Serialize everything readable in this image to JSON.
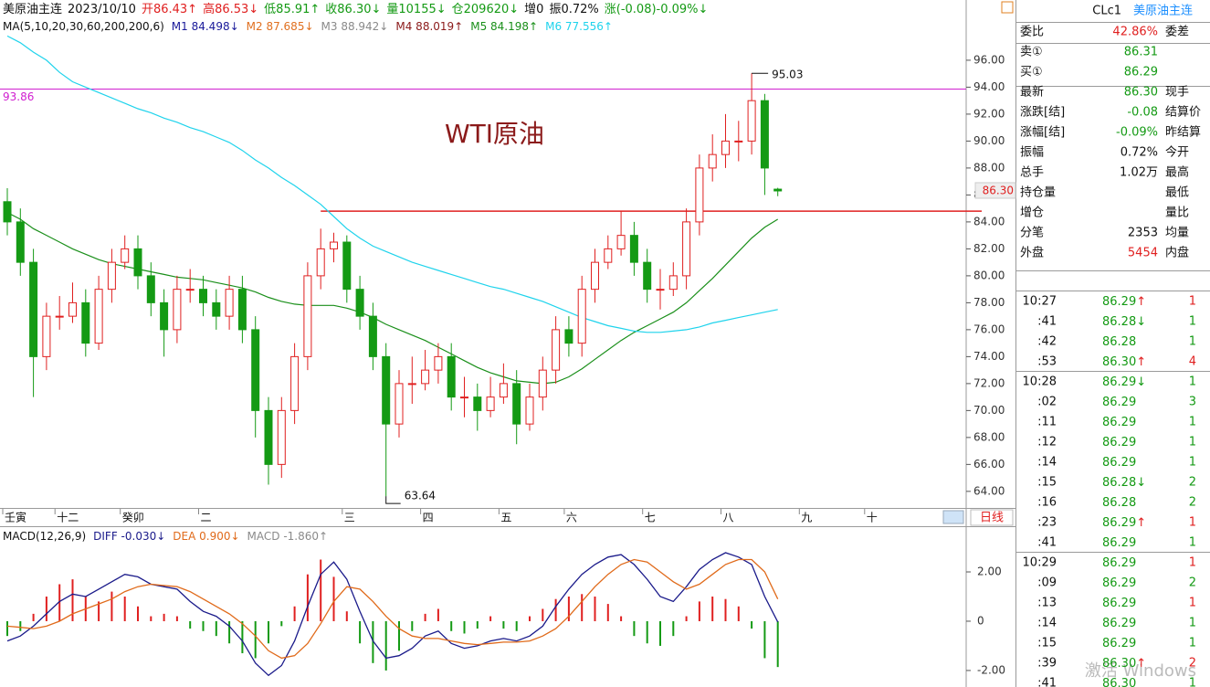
{
  "header": {
    "segments": [
      {
        "text": "美原油主连",
        "color": "#111"
      },
      {
        "text": "2023/10/10",
        "color": "#111"
      },
      {
        "text": "开86.43↑",
        "color": "#e02020"
      },
      {
        "text": "高86.53↓",
        "color": "#e02020"
      },
      {
        "text": "低85.91↑",
        "color": "#149a14"
      },
      {
        "text": "收86.30↓",
        "color": "#149a14"
      },
      {
        "text": "量10155↓",
        "color": "#149a14"
      },
      {
        "text": "仓209620↓",
        "color": "#149a14"
      },
      {
        "text": "增0",
        "color": "#111"
      },
      {
        "text": "振0.72%",
        "color": "#111"
      },
      {
        "text": "涨(-0.08)-0.09%↓",
        "color": "#149a14"
      }
    ]
  },
  "chart_data": [
    {
      "type": "candlestick",
      "annotation": "WTI原油",
      "ma_label": "MA(5,10,20,30,60,200,200,6)",
      "up_color": "#e02020",
      "down_color": "#149a14",
      "last_label": "86.30",
      "period": "日线",
      "categories": [
        "壬寅",
        null,
        null,
        null,
        "十二",
        null,
        null,
        null,
        null,
        "癸卯",
        null,
        null,
        null,
        null,
        null,
        "二",
        null,
        null,
        null,
        null,
        null,
        null,
        null,
        null,
        null,
        null,
        "三",
        null,
        null,
        null,
        null,
        null,
        "四",
        null,
        null,
        null,
        null,
        null,
        "五",
        null,
        null,
        null,
        null,
        "六",
        null,
        null,
        null,
        null,
        null,
        "七",
        null,
        null,
        null,
        null,
        null,
        "八",
        null,
        null,
        null,
        null,
        null,
        "九",
        null,
        null,
        null,
        null,
        "十"
      ],
      "open": [
        85.5,
        84,
        81,
        74,
        77,
        77,
        78,
        75,
        79,
        81,
        82,
        80,
        78,
        76,
        79,
        79,
        78,
        77,
        79,
        76,
        70,
        66,
        70,
        74,
        80,
        82,
        82.5,
        79,
        77,
        74,
        69,
        72,
        72,
        73,
        74,
        71,
        71,
        70,
        71,
        72,
        69,
        71,
        73,
        76,
        75,
        79,
        81,
        82,
        83,
        81,
        79,
        79,
        80,
        84,
        88,
        89,
        90,
        90,
        93,
        86.43,
        null,
        null,
        null,
        null,
        null,
        null,
        null
      ],
      "high": [
        86.5,
        85,
        82,
        78,
        78.5,
        79.5,
        79,
        80,
        82,
        83,
        83,
        81,
        79,
        80,
        80.5,
        80,
        79,
        80,
        80,
        77,
        71,
        71,
        75,
        81,
        83.5,
        83.2,
        83,
        80,
        78,
        75,
        73,
        74,
        74.5,
        75,
        75,
        72.5,
        72,
        72.5,
        73.5,
        73,
        72,
        74,
        77,
        77,
        80,
        82,
        83,
        84.8,
        84,
        82,
        80.5,
        81,
        85,
        89,
        90.5,
        92,
        91.5,
        95.03,
        93.5,
        86.53,
        null,
        null,
        null,
        null,
        null,
        null,
        null
      ],
      "low": [
        83,
        80,
        71,
        73,
        76,
        76.5,
        74,
        74.5,
        78,
        80.5,
        79,
        77,
        74,
        75,
        78,
        77,
        76,
        76,
        75,
        68,
        64.5,
        65,
        69,
        73,
        79,
        81,
        78,
        76,
        73,
        63.64,
        68,
        70.5,
        71.5,
        72,
        70,
        69.5,
        68.5,
        69.5,
        70.5,
        67.5,
        68.5,
        70,
        72,
        74,
        74,
        78,
        80.5,
        81.5,
        80,
        78,
        77.5,
        78.5,
        79,
        83,
        87,
        88,
        88.5,
        89,
        86,
        85.91,
        null,
        null,
        null,
        null,
        null,
        null,
        null
      ],
      "close": [
        84,
        81,
        74,
        77,
        77,
        78,
        75,
        79,
        81,
        82,
        80,
        78,
        76,
        79,
        79,
        78,
        77,
        79,
        76,
        70,
        66,
        70,
        74,
        80,
        82,
        82.5,
        79,
        77,
        74,
        69,
        72,
        72,
        73,
        74,
        71,
        71,
        70,
        71,
        72,
        69,
        71,
        73,
        76,
        75,
        79,
        81,
        82,
        83,
        81,
        79,
        79,
        80,
        84,
        88,
        89,
        90,
        90,
        93,
        88,
        86.3,
        null,
        null,
        null,
        null,
        null,
        null,
        null
      ],
      "series": [
        {
          "name": "M1 84.498↓",
          "color": "#1a1a9a"
        },
        {
          "name": "M2 87.685↓",
          "color": "#e07020"
        },
        {
          "name": "M3 88.942↓",
          "color": "#8a8a8a"
        },
        {
          "name": "M4 88.019↑",
          "color": "#8b1a1a"
        },
        {
          "name": "M5 84.198↑",
          "color": "#1a8f1a",
          "values": [
            84.7,
            84.2,
            83.5,
            83,
            82.5,
            82,
            81.6,
            81.2,
            80.9,
            80.7,
            80.5,
            80.3,
            80.1,
            79.9,
            79.8,
            79.7,
            79.5,
            79.3,
            79.1,
            78.8,
            78.4,
            78.1,
            77.9,
            77.8,
            77.8,
            77.8,
            77.6,
            77.3,
            76.9,
            76.4,
            76,
            75.6,
            75.2,
            74.7,
            74.2,
            73.7,
            73.2,
            72.8,
            72.5,
            72.2,
            72.1,
            72,
            72.1,
            72.5,
            73.1,
            73.8,
            74.5,
            75.2,
            75.8,
            76.3,
            76.8,
            77.3,
            78,
            78.9,
            79.8,
            80.8,
            81.8,
            82.8,
            83.6,
            84.2,
            null,
            null,
            null,
            null,
            null,
            null,
            null
          ]
        },
        {
          "name": "M6 77.556↑",
          "color": "#1fd3ec",
          "values": [
            97.8,
            97.3,
            96.6,
            96,
            95.1,
            94.4,
            94,
            93.6,
            93.2,
            92.8,
            92.4,
            92.1,
            91.7,
            91.4,
            91,
            90.7,
            90.3,
            89.9,
            89.3,
            88.6,
            88,
            87.3,
            86.7,
            86,
            85.3,
            84.4,
            83.5,
            82.8,
            82.2,
            81.8,
            81.4,
            81,
            80.7,
            80.4,
            80.1,
            79.8,
            79.5,
            79.2,
            79,
            78.7,
            78.4,
            78.1,
            77.7,
            77.3,
            76.9,
            76.6,
            76.3,
            76.1,
            75.9,
            75.8,
            75.8,
            75.9,
            76,
            76.2,
            76.5,
            76.7,
            76.9,
            77.1,
            77.3,
            77.5,
            null,
            null,
            null,
            null,
            null,
            null,
            null
          ]
        }
      ],
      "hlines": [
        {
          "value": 93.86,
          "color": "#d020d0"
        },
        {
          "value": 84.8,
          "color": "#e02020"
        }
      ],
      "ylim": [
        62.77,
        100.47
      ],
      "yticks": [
        {
          "value": 64,
          "label": "64.00"
        },
        {
          "value": 66,
          "label": "66.00"
        },
        {
          "value": 68,
          "label": "68.00"
        },
        {
          "value": 70,
          "label": "70.00"
        },
        {
          "value": 72,
          "label": "72.00"
        },
        {
          "value": 74,
          "label": "74.00"
        },
        {
          "value": 76,
          "label": "76.00"
        },
        {
          "value": 78,
          "label": "78.00"
        },
        {
          "value": 80,
          "label": "80.00"
        },
        {
          "value": 82,
          "label": "82.00"
        },
        {
          "value": 84,
          "label": "84.00"
        },
        {
          "value": 86,
          "label": "86.00"
        },
        {
          "value": 88,
          "label": "88.00"
        },
        {
          "value": 90,
          "label": "90.00"
        },
        {
          "value": 92,
          "label": "92.00"
        },
        {
          "value": 94,
          "label": "94.00"
        },
        {
          "value": 96,
          "label": "96.00"
        }
      ]
    },
    {
      "type": "macd",
      "label": "MACD(12,26,9)",
      "series": [
        {
          "name": "DIFF -0.030↓",
          "color": "#1a1a8a",
          "values": [
            -0.8,
            -0.6,
            -0.2,
            0.3,
            0.8,
            1.1,
            1.0,
            1.3,
            1.6,
            1.9,
            1.8,
            1.5,
            1.4,
            1.3,
            0.8,
            0.4,
            0.2,
            -0.2,
            -0.8,
            -1.7,
            -2.2,
            -1.8,
            -0.8,
            0.6,
            1.9,
            2.4,
            1.7,
            0.4,
            -0.8,
            -1.5,
            -1.4,
            -1.1,
            -0.6,
            -0.4,
            -0.9,
            -1.1,
            -1.0,
            -0.8,
            -0.7,
            -0.8,
            -0.6,
            -0.2,
            0.6,
            1.3,
            1.9,
            2.3,
            2.6,
            2.7,
            2.3,
            1.7,
            1.0,
            0.8,
            1.4,
            2.1,
            2.5,
            2.78,
            2.6,
            2.3,
            1.0,
            -0.03
          ]
        },
        {
          "name": "DEA 0.900↓",
          "color": "#e06a1a",
          "values": [
            -0.2,
            -0.25,
            -0.3,
            -0.2,
            0.0,
            0.3,
            0.5,
            0.7,
            0.9,
            1.2,
            1.4,
            1.5,
            1.45,
            1.4,
            1.2,
            0.9,
            0.6,
            0.3,
            -0.1,
            -0.6,
            -1.2,
            -1.5,
            -1.4,
            -0.9,
            -0.1,
            0.8,
            1.4,
            1.3,
            0.8,
            0.2,
            -0.3,
            -0.6,
            -0.7,
            -0.7,
            -0.8,
            -0.9,
            -0.95,
            -0.9,
            -0.85,
            -0.85,
            -0.8,
            -0.6,
            -0.3,
            0.2,
            0.8,
            1.4,
            1.9,
            2.3,
            2.5,
            2.4,
            2.0,
            1.6,
            1.3,
            1.5,
            1.9,
            2.3,
            2.5,
            2.5,
            2.0,
            0.9
          ]
        }
      ],
      "histogram": {
        "name": "MACD -1.860↑",
        "color": "#8a8a8a",
        "up_color": "#e02020",
        "down_color": "#149a14",
        "values": [
          -0.6,
          -0.4,
          0.3,
          1.0,
          1.5,
          1.7,
          1.0,
          0.8,
          1.2,
          1.0,
          0.6,
          0.2,
          0.3,
          0.2,
          -0.3,
          -0.4,
          -0.6,
          -0.9,
          -1.3,
          -1.5,
          -0.9,
          -0.2,
          0.6,
          1.9,
          2.5,
          1.8,
          0.4,
          -0.9,
          -1.7,
          -2.0,
          -1.2,
          -0.4,
          0.3,
          0.5,
          -0.4,
          -0.5,
          -0.3,
          0.2,
          -0.3,
          -0.4,
          0.2,
          0.5,
          0.9,
          1.0,
          1.1,
          1.0,
          0.7,
          0.2,
          -0.6,
          -0.9,
          -1.0,
          -0.6,
          0.2,
          0.8,
          1.0,
          0.9,
          0.6,
          -0.3,
          -1.5,
          -1.86
        ]
      },
      "ylim": [
        -2.67,
        3.78
      ],
      "yticks": [
        {
          "value": 2,
          "label": "2.00"
        },
        0,
        {
          "value": -2,
          "label": "-2.00"
        }
      ]
    }
  ],
  "quote_panel": {
    "symbol": "CLc1",
    "name": "美原油主连",
    "rows": [
      {
        "label": "委比",
        "value": "42.86%",
        "label2": "委差",
        "color": "#e02020"
      },
      {
        "label": "卖①",
        "value": "86.31",
        "color": "#149a14"
      },
      {
        "label": "买①",
        "value": "86.29",
        "color": "#149a14"
      },
      {
        "label": "最新",
        "value": "86.30",
        "label2": "现手",
        "color": "#149a14"
      },
      {
        "label": "涨跌[结]",
        "value": "-0.08",
        "label2": "结算价",
        "color": "#149a14"
      },
      {
        "label": "涨幅[结]",
        "value": "-0.09%",
        "label2": "昨结算",
        "color": "#149a14"
      },
      {
        "label": "振幅",
        "value": "0.72%",
        "label2": "今开",
        "color": "#111"
      },
      {
        "label": "总手",
        "value": "1.02万",
        "label2": "最高",
        "color": "#111"
      },
      {
        "label": "持仓量",
        "label2": "最低",
        "color": "#111"
      },
      {
        "label": "增仓",
        "label2": "量比",
        "color": "#111"
      },
      {
        "label": "分笔",
        "value": "2353",
        "label2": "均量",
        "color": "#111"
      },
      {
        "label": "外盘",
        "value": "5454",
        "label2": "内盘",
        "color": "#e02020"
      }
    ]
  },
  "trades": {
    "price_color": "#149a14",
    "rows": [
      {
        "time": "10:27",
        "price": "86.29",
        "arrow": "↑",
        "arrow_color": "#e02020",
        "volume": "1",
        "color": "#e02020"
      },
      {
        "time": ":41",
        "price": "86.28",
        "arrow": "↓",
        "arrow_color": "#149a14",
        "volume": "1",
        "color": "#149a14"
      },
      {
        "time": ":42",
        "price": "86.28",
        "volume": "1",
        "color": "#149a14"
      },
      {
        "time": ":53",
        "price": "86.30",
        "arrow": "↑",
        "arrow_color": "#e02020",
        "volume": "4",
        "color": "#e02020"
      },
      {
        "time": "10:28",
        "price": "86.29",
        "arrow": "↓",
        "arrow_color": "#149a14",
        "volume": "1",
        "color": "#149a14"
      },
      {
        "time": ":02",
        "price": "86.29",
        "volume": "3",
        "color": "#149a14"
      },
      {
        "time": ":11",
        "price": "86.29",
        "volume": "1",
        "color": "#149a14"
      },
      {
        "time": ":12",
        "price": "86.29",
        "volume": "1",
        "color": "#149a14"
      },
      {
        "time": ":14",
        "price": "86.29",
        "volume": "1",
        "color": "#149a14"
      },
      {
        "time": ":15",
        "price": "86.28",
        "arrow": "↓",
        "arrow_color": "#149a14",
        "volume": "2",
        "color": "#149a14"
      },
      {
        "time": ":16",
        "price": "86.28",
        "volume": "2",
        "color": "#149a14"
      },
      {
        "time": ":23",
        "price": "86.29",
        "arrow": "↑",
        "arrow_color": "#e02020",
        "volume": "1",
        "color": "#e02020"
      },
      {
        "time": ":41",
        "price": "86.29",
        "volume": "1",
        "color": "#149a14"
      },
      {
        "time": "10:29",
        "price": "86.29",
        "volume": "1",
        "color": "#e02020"
      },
      {
        "time": ":09",
        "price": "86.29",
        "volume": "2",
        "color": "#149a14"
      },
      {
        "time": ":13",
        "price": "86.29",
        "volume": "1",
        "color": "#e02020"
      },
      {
        "time": ":14",
        "price": "86.29",
        "volume": "1",
        "color": "#149a14"
      },
      {
        "time": ":15",
        "price": "86.29",
        "volume": "1",
        "color": "#149a14"
      },
      {
        "time": ":39",
        "price": "86.30",
        "arrow": "↑",
        "arrow_color": "#e02020",
        "volume": "2",
        "color": "#e02020"
      },
      {
        "time": ":41",
        "price": "86.30",
        "volume": "1",
        "color": "#149a14"
      }
    ]
  },
  "watermark": "激活 Windows"
}
